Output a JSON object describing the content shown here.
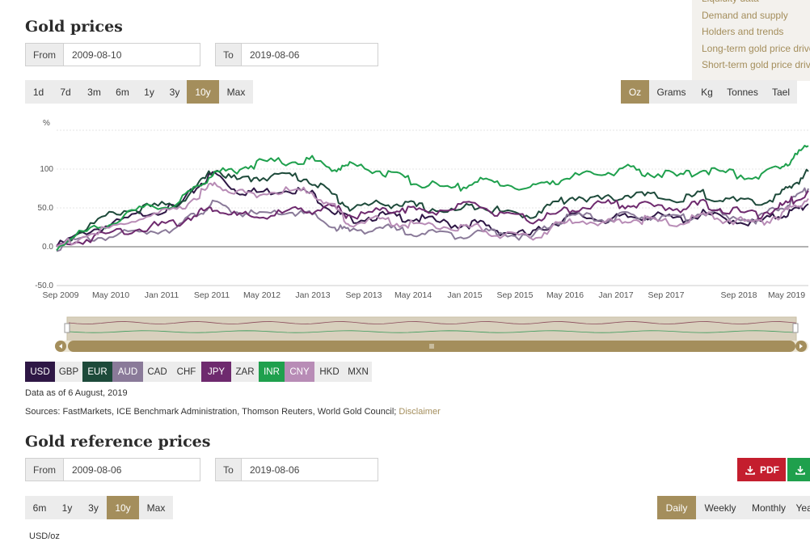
{
  "side_menu": [
    "Liquidity data",
    "Demand and supply",
    "Holders and trends",
    "Long-term gold price drivers",
    "Short-term gold price drivers"
  ],
  "gold_prices": {
    "title": "Gold prices",
    "from_label": "From",
    "from_value": "2009-08-10",
    "to_label": "To",
    "to_value": "2019-08-06",
    "ranges": [
      "1d",
      "7d",
      "3m",
      "6m",
      "1y",
      "3y",
      "10y",
      "Max"
    ],
    "active_range": "10y",
    "units": [
      "Oz",
      "Grams",
      "Kg",
      "Tonnes",
      "Tael"
    ],
    "active_unit": "Oz",
    "currencies": [
      {
        "code": "USD",
        "bg": "#2e1745",
        "fg": "#ffffff"
      },
      {
        "code": "GBP",
        "bg": "#ececec",
        "fg": "#333333"
      },
      {
        "code": "EUR",
        "bg": "#1d4a3a",
        "fg": "#ffffff"
      },
      {
        "code": "AUD",
        "bg": "#8a7a99",
        "fg": "#ffffff"
      },
      {
        "code": "CAD",
        "bg": "#ececec",
        "fg": "#333333"
      },
      {
        "code": "CHF",
        "bg": "#ececec",
        "fg": "#333333"
      },
      {
        "code": "JPY",
        "bg": "#6e2a6e",
        "fg": "#ffffff"
      },
      {
        "code": "ZAR",
        "bg": "#ececec",
        "fg": "#333333"
      },
      {
        "code": "INR",
        "bg": "#1fa04d",
        "fg": "#ffffff"
      },
      {
        "code": "CNY",
        "bg": "#b88cb6",
        "fg": "#ffffff"
      },
      {
        "code": "HKD",
        "bg": "#ececec",
        "fg": "#333333"
      },
      {
        "code": "MXN",
        "bg": "#ececec",
        "fg": "#333333"
      }
    ],
    "data_as_of": "Data as of 6 August, 2019",
    "sources": "Sources: FastMarkets, ICE Benchmark Administration, Thomson Reuters, World Gold Council;",
    "disclaimer": "Disclaimer"
  },
  "reference_prices": {
    "title": "Gold reference prices",
    "from_label": "From",
    "from_value": "2009-08-06",
    "to_label": "To",
    "to_value": "2019-08-06",
    "pdf_label": "PDF",
    "ranges": [
      "6m",
      "1y",
      "3y",
      "10y",
      "Max"
    ],
    "active_range": "10y",
    "periods": [
      "Daily",
      "Weekly",
      "Monthly",
      "Yearly"
    ],
    "active_period": "Daily",
    "unit_label": "USD/oz"
  },
  "chart_data": {
    "type": "line",
    "ylabel": "%",
    "ylim": [
      -50,
      150
    ],
    "yticks": [
      "100",
      "50.0",
      "0.0",
      "-50.0"
    ],
    "xticks": [
      "Sep 2009",
      "May 2010",
      "Jan 2011",
      "Sep 2011",
      "May 2012",
      "Jan 2013",
      "Sep 2013",
      "May 2014",
      "Jan 2015",
      "Sep 2015",
      "May 2016",
      "Jan 2017",
      "Sep 2017",
      "Sep 2018",
      "May 2019"
    ],
    "x": [
      2009.6,
      2010.0,
      2010.4,
      2010.8,
      2011.2,
      2011.5,
      2011.7,
      2012.0,
      2012.3,
      2012.7,
      2013.0,
      2013.3,
      2013.5,
      2013.9,
      2014.2,
      2014.5,
      2014.9,
      2015.2,
      2015.5,
      2015.9,
      2016.2,
      2016.5,
      2016.9,
      2017.2,
      2017.5,
      2017.9,
      2018.2,
      2018.5,
      2018.9,
      2019.2,
      2019.4,
      2019.6
    ],
    "series": [
      {
        "name": "USD",
        "color": "#2e1745",
        "values": [
          0,
          20,
          30,
          45,
          50,
          80,
          95,
          72,
          70,
          75,
          68,
          45,
          35,
          40,
          38,
          35,
          28,
          30,
          20,
          15,
          30,
          40,
          35,
          38,
          40,
          35,
          42,
          36,
          30,
          40,
          45,
          55
        ]
      },
      {
        "name": "EUR",
        "color": "#1d4a3a",
        "values": [
          0,
          25,
          45,
          50,
          55,
          80,
          100,
          85,
          90,
          92,
          85,
          65,
          50,
          55,
          55,
          50,
          45,
          55,
          45,
          40,
          55,
          65,
          60,
          68,
          65,
          60,
          68,
          60,
          55,
          65,
          80,
          97
        ]
      },
      {
        "name": "AUD",
        "color": "#8a7a99",
        "values": [
          0,
          10,
          15,
          20,
          25,
          45,
          55,
          45,
          40,
          45,
          40,
          25,
          20,
          25,
          20,
          18,
          15,
          18,
          20,
          10,
          30,
          40,
          35,
          40,
          40,
          35,
          45,
          40,
          35,
          48,
          60,
          75
        ]
      },
      {
        "name": "JPY",
        "color": "#6e2a6e",
        "values": [
          0,
          10,
          20,
          25,
          30,
          45,
          50,
          40,
          38,
          45,
          48,
          50,
          40,
          45,
          50,
          45,
          50,
          55,
          40,
          35,
          40,
          50,
          55,
          55,
          52,
          50,
          55,
          48,
          40,
          50,
          60,
          72
        ]
      },
      {
        "name": "INR",
        "color": "#1fa04d",
        "values": [
          0,
          20,
          35,
          50,
          55,
          80,
          95,
          100,
          108,
          110,
          112,
          100,
          105,
          98,
          88,
          80,
          75,
          85,
          82,
          75,
          85,
          90,
          95,
          100,
          95,
          90,
          100,
          95,
          90,
          100,
          115,
          130
        ]
      },
      {
        "name": "CNY",
        "color": "#b88cb6",
        "values": [
          0,
          15,
          25,
          40,
          45,
          68,
          80,
          70,
          68,
          72,
          70,
          50,
          30,
          35,
          30,
          28,
          25,
          25,
          15,
          10,
          25,
          35,
          30,
          35,
          35,
          30,
          40,
          35,
          30,
          40,
          50,
          62
        ]
      }
    ]
  }
}
